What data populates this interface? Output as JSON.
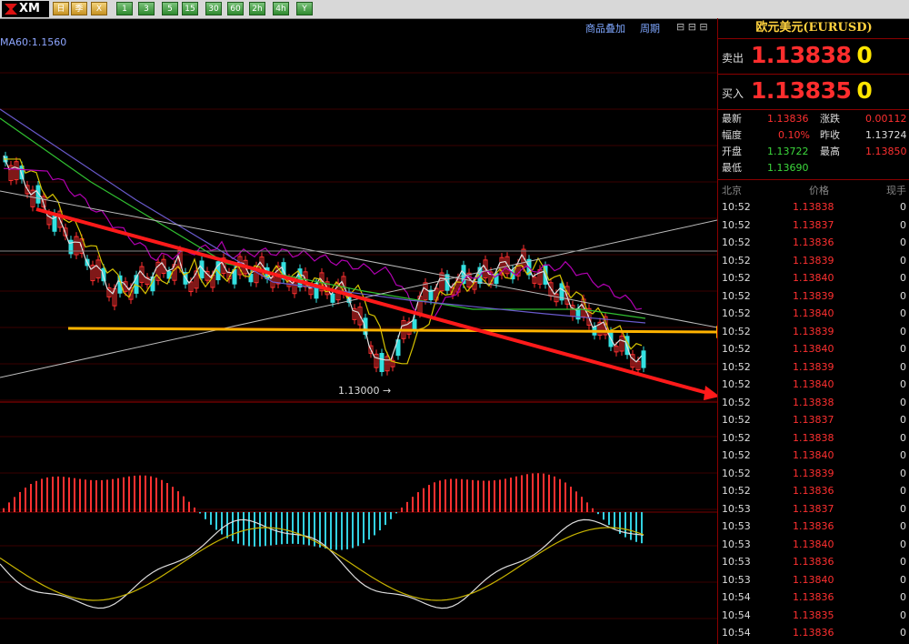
{
  "toolbar": {
    "logo": "XM",
    "buttons": [
      "日",
      "季",
      "X",
      "1",
      "3",
      "5",
      "15",
      "30",
      "60",
      "2h",
      "4h",
      "Y"
    ]
  },
  "chart_header": {
    "overlay_label": "商品叠加",
    "cycle_label": "周期"
  },
  "ma_label": "MA60:1.1560",
  "chart_data": {
    "type": "candlestick",
    "low_annotation": "1.13000",
    "indicators": [
      "candles",
      "moving averages",
      "MACD histogram",
      "MACD lines"
    ]
  },
  "panel": {
    "title": "欧元美元(EURUSD)",
    "sell": {
      "label": "卖出",
      "value": "1.13838",
      "tail": "0"
    },
    "buy": {
      "label": "买入",
      "value": "1.13835",
      "tail": "0"
    },
    "stats": {
      "latest_label": "最新",
      "latest": "1.13836",
      "change_label": "涨跌",
      "change": "0.00112",
      "range_label": "幅度",
      "range": "0.10%",
      "prev_close_label": "昨收",
      "prev_close": "1.13724",
      "open_label": "开盘",
      "open": "1.13722",
      "high_label": "最高",
      "high": "1.13850",
      "low_label": "最低",
      "low": "1.13690"
    },
    "ticks_header": {
      "time": "北京",
      "price": "价格",
      "volume": "现手"
    },
    "ticks": [
      {
        "time": "10:52",
        "price": "1.13838",
        "vol": "0"
      },
      {
        "time": "10:52",
        "price": "1.13837",
        "vol": "0"
      },
      {
        "time": "10:52",
        "price": "1.13836",
        "vol": "0"
      },
      {
        "time": "10:52",
        "price": "1.13839",
        "vol": "0"
      },
      {
        "time": "10:52",
        "price": "1.13840",
        "vol": "0"
      },
      {
        "time": "10:52",
        "price": "1.13839",
        "vol": "0"
      },
      {
        "time": "10:52",
        "price": "1.13840",
        "vol": "0"
      },
      {
        "time": "10:52",
        "price": "1.13839",
        "vol": "0"
      },
      {
        "time": "10:52",
        "price": "1.13840",
        "vol": "0"
      },
      {
        "time": "10:52",
        "price": "1.13839",
        "vol": "0"
      },
      {
        "time": "10:52",
        "price": "1.13840",
        "vol": "0"
      },
      {
        "time": "10:52",
        "price": "1.13838",
        "vol": "0"
      },
      {
        "time": "10:52",
        "price": "1.13837",
        "vol": "0"
      },
      {
        "time": "10:52",
        "price": "1.13838",
        "vol": "0"
      },
      {
        "time": "10:52",
        "price": "1.13840",
        "vol": "0"
      },
      {
        "time": "10:52",
        "price": "1.13839",
        "vol": "0"
      },
      {
        "time": "10:52",
        "price": "1.13836",
        "vol": "0"
      },
      {
        "time": "10:53",
        "price": "1.13837",
        "vol": "0"
      },
      {
        "time": "10:53",
        "price": "1.13836",
        "vol": "0"
      },
      {
        "time": "10:53",
        "price": "1.13840",
        "vol": "0"
      },
      {
        "time": "10:53",
        "price": "1.13836",
        "vol": "0"
      },
      {
        "time": "10:53",
        "price": "1.13840",
        "vol": "0"
      },
      {
        "time": "10:54",
        "price": "1.13836",
        "vol": "0"
      },
      {
        "time": "10:54",
        "price": "1.13835",
        "vol": "0"
      },
      {
        "time": "10:54",
        "price": "1.13836",
        "vol": "0"
      }
    ]
  }
}
